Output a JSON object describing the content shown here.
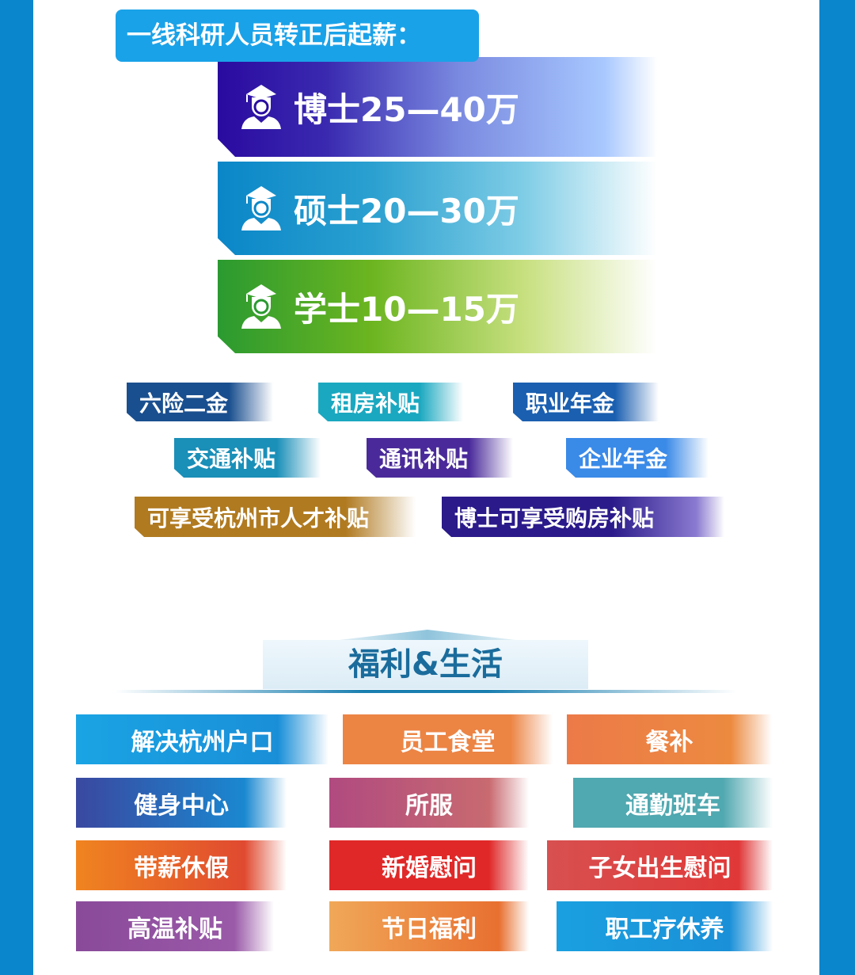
{
  "salary": {
    "title": "一线科研人员转正后起薪：",
    "levels": [
      {
        "label": "博士25—40万",
        "icon": "graduate-icon",
        "color": "#2a0ea0"
      },
      {
        "label": "硕士20—30万",
        "icon": "graduate-icon",
        "color": "#0a88c8"
      },
      {
        "label": "学士10—15万",
        "icon": "graduate-icon",
        "color": "#2a9a30"
      }
    ]
  },
  "perks": [
    "六险二金",
    "租房补贴",
    "职业年金",
    "交通补贴",
    "通讯补贴",
    "企业年金",
    "可享受杭州市人才补贴",
    "博士可享受购房补贴"
  ],
  "benefits": {
    "title": "福利&生活",
    "items": [
      "解决杭州户口",
      "员工食堂",
      "餐补",
      "健身中心",
      "所服",
      "通勤班车",
      "带薪休假",
      "新婚慰问",
      "子女出生慰问",
      "高温补贴",
      "节日福利",
      "职工疗休养"
    ]
  }
}
